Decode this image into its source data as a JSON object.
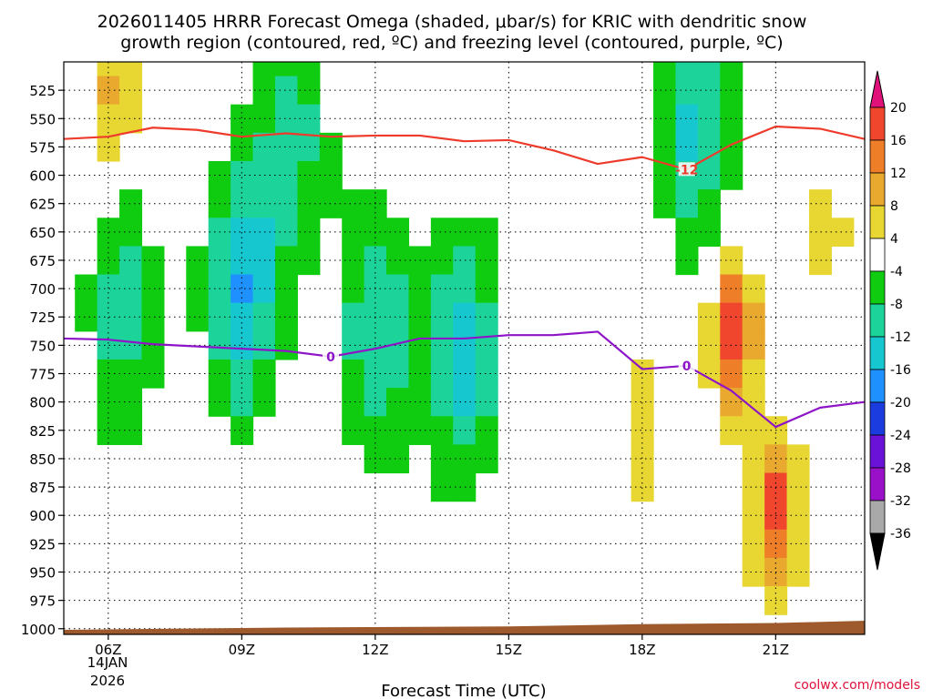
{
  "chart_data": {
    "type": "heatmap",
    "title_lines": [
      "2026011405 HRRR Forecast Omega (shaded, μbar/s) for KRIC with dendritic snow",
      "growth region (contoured, red, ºC) and freezing level (contoured, purple, ºC)"
    ],
    "xlabel": "Forecast Time (UTC)",
    "ylabel": "",
    "credit": "coolwx.com/models",
    "x_ticks": [
      {
        "x": 6,
        "label": "06Z"
      },
      {
        "x": 9,
        "label": "09Z"
      },
      {
        "x": 12,
        "label": "12Z"
      },
      {
        "x": 15,
        "label": "15Z"
      },
      {
        "x": 18,
        "label": "18Z"
      },
      {
        "x": 21,
        "label": "21Z"
      }
    ],
    "x_date_label": [
      "14JAN",
      "2026"
    ],
    "xlim": [
      5,
      23
    ],
    "ylim": [
      1005,
      500
    ],
    "y_ticks": [
      525,
      550,
      575,
      600,
      625,
      650,
      675,
      700,
      725,
      750,
      775,
      800,
      825,
      850,
      875,
      900,
      925,
      950,
      975,
      1000
    ],
    "grid": true,
    "colorbar": {
      "levels": [
        -36,
        -32,
        -28,
        -24,
        -20,
        -16,
        -12,
        -8,
        -4,
        4,
        8,
        12,
        16,
        20
      ],
      "label_levels": [
        -36,
        -32,
        -28,
        -24,
        -20,
        -16,
        -12,
        -8,
        -4,
        4,
        8,
        12,
        16,
        20
      ],
      "colors": [
        "#a9a9a9",
        "#9a10c8",
        "#6b12d8",
        "#1b3de0",
        "#1e90ff",
        "#17c7d0",
        "#1cd39a",
        "#10cc10",
        "#ffffff",
        "#e8d733",
        "#e8a92e",
        "#ee7e28",
        "#f0462e",
        "#e0127a"
      ]
    },
    "omega_field": {
      "units": "μbar/s",
      "x": [
        5,
        5.5,
        6,
        6.5,
        7,
        7.5,
        8,
        8.5,
        9,
        9.5,
        10,
        10.5,
        11,
        11.5,
        12,
        12.5,
        13,
        13.5,
        14,
        14.5,
        15,
        15.5,
        16,
        16.5,
        17,
        17.5,
        18,
        18.5,
        19,
        19.5,
        20,
        20.5,
        21,
        21.5,
        22,
        22.5,
        23
      ],
      "y": [
        500,
        525,
        550,
        575,
        600,
        625,
        650,
        675,
        700,
        725,
        750,
        775,
        800,
        825,
        850,
        875,
        900,
        925,
        950,
        975,
        1000
      ],
      "features": [
        {
          "kind": "sink",
          "x": 6.1,
          "p": 530,
          "peak": 10
        },
        {
          "kind": "lift",
          "x": 6.3,
          "p": 720,
          "peak": -10
        },
        {
          "kind": "lift",
          "x": 9.0,
          "p": 700,
          "peak": -16
        },
        {
          "kind": "lift",
          "x": 10.2,
          "p": 560,
          "peak": -9
        },
        {
          "kind": "lift",
          "x": 12.0,
          "p": 740,
          "peak": -12
        },
        {
          "kind": "lift",
          "x": 14.0,
          "p": 760,
          "peak": -14
        },
        {
          "kind": "lift",
          "x": 19.2,
          "p": 560,
          "peak": -13
        },
        {
          "kind": "sink",
          "x": 20.0,
          "p": 740,
          "peak": 20
        },
        {
          "kind": "sink",
          "x": 21.0,
          "p": 895,
          "peak": 18
        },
        {
          "kind": "sink",
          "x": 18.0,
          "p": 820,
          "peak": 8
        },
        {
          "kind": "sink",
          "x": 22.2,
          "p": 650,
          "peak": 6
        }
      ]
    },
    "contours": [
      {
        "name": "dendritic snow growth region",
        "color": "#ee3b2c",
        "label": "-12",
        "label_at": {
          "x": 19.0,
          "p": 595
        },
        "points": [
          [
            5,
            568
          ],
          [
            6,
            566
          ],
          [
            7,
            558
          ],
          [
            8,
            560
          ],
          [
            9,
            566
          ],
          [
            10,
            563
          ],
          [
            11,
            566
          ],
          [
            12,
            565
          ],
          [
            13,
            565
          ],
          [
            14,
            570
          ],
          [
            15,
            569
          ],
          [
            16,
            578
          ],
          [
            17,
            590
          ],
          [
            18,
            584
          ],
          [
            19,
            595
          ],
          [
            20,
            573
          ],
          [
            21,
            557
          ],
          [
            22,
            559
          ],
          [
            23,
            568
          ]
        ]
      },
      {
        "name": "freezing level",
        "color": "#8e14c8",
        "label": "0",
        "label_at": {
          "x": 11.0,
          "p": 760
        },
        "label2_at": {
          "x": 19.0,
          "p": 768
        },
        "points": [
          [
            5,
            744
          ],
          [
            6,
            745
          ],
          [
            7,
            749
          ],
          [
            8,
            751
          ],
          [
            9,
            753
          ],
          [
            10,
            755
          ],
          [
            11,
            760
          ],
          [
            12,
            753
          ],
          [
            13,
            744
          ],
          [
            14,
            744
          ],
          [
            15,
            741
          ],
          [
            16,
            741
          ],
          [
            17,
            738
          ],
          [
            18,
            771
          ],
          [
            19,
            768
          ],
          [
            20,
            790
          ],
          [
            21,
            822
          ],
          [
            22,
            805
          ],
          [
            23,
            800
          ]
        ]
      }
    ],
    "terrain": {
      "color": "#9e5a2c",
      "points": [
        [
          5,
          1001
        ],
        [
          10,
          999
        ],
        [
          15,
          998
        ],
        [
          18,
          996
        ],
        [
          21,
          995
        ],
        [
          23,
          993
        ]
      ]
    }
  }
}
